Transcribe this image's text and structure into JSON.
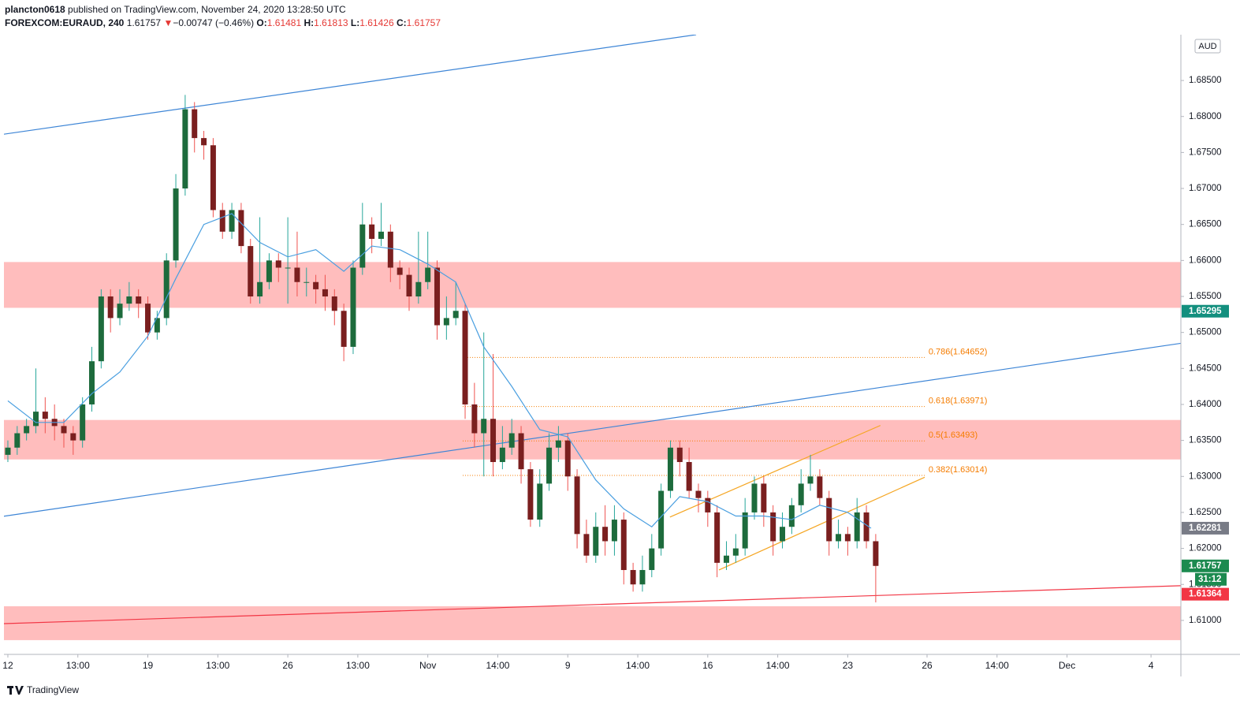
{
  "header": {
    "author": "plancton0618",
    "published": "published on TradingView.com, November 24, 2020 13:28:50 UTC",
    "symbol": "FOREXCOM:EURAUD, 240",
    "last": 1.61757,
    "direction": "▼",
    "change": "−0.00747 (−0.46%)",
    "open_label": "O:",
    "open": 1.61481,
    "high_label": "H:",
    "high": 1.61813,
    "low_label": "L:",
    "low": 1.61426,
    "close_label": "C:",
    "close": 1.61757
  },
  "chart_data": {
    "type": "candlestick",
    "xlim": [
      -0.84,
      251.4
    ],
    "ylim": [
      1.60528,
      1.69136
    ],
    "xticks": [
      {
        "value": 0,
        "label": "12"
      },
      {
        "value": 15,
        "label": "13:00"
      },
      {
        "value": 30,
        "label": "19"
      },
      {
        "value": 45,
        "label": "13:00"
      },
      {
        "value": 60,
        "label": "26"
      },
      {
        "value": 75,
        "label": "13:00"
      },
      {
        "value": 90,
        "label": "Nov"
      },
      {
        "value": 105,
        "label": "14:00"
      },
      {
        "value": 120,
        "label": "9"
      },
      {
        "value": 135,
        "label": "14:00"
      },
      {
        "value": 150,
        "label": "16"
      },
      {
        "value": 165,
        "label": "14:00"
      },
      {
        "value": 180,
        "label": "23"
      },
      {
        "value": 197,
        "label": "26"
      },
      {
        "value": 212,
        "label": "14:00"
      },
      {
        "value": 227,
        "label": "Dec"
      },
      {
        "value": 245,
        "label": "4"
      }
    ],
    "yticks": [
      {
        "value": 1.61,
        "label": "1.61000"
      },
      {
        "value": 1.615,
        "label": "1.61500"
      },
      {
        "value": 1.62,
        "label": "1.62000"
      },
      {
        "value": 1.625,
        "label": "1.62500"
      },
      {
        "value": 1.63,
        "label": "1.63000"
      },
      {
        "value": 1.635,
        "label": "1.63500"
      },
      {
        "value": 1.64,
        "label": "1.64000"
      },
      {
        "value": 1.645,
        "label": "1.64500"
      },
      {
        "value": 1.65,
        "label": "1.65000"
      },
      {
        "value": 1.655,
        "label": "1.65500"
      },
      {
        "value": 1.66,
        "label": "1.66000"
      },
      {
        "value": 1.665,
        "label": "1.66500"
      },
      {
        "value": 1.67,
        "label": "1.67000"
      },
      {
        "value": 1.675,
        "label": "1.67500"
      },
      {
        "value": 1.68,
        "label": "1.68000"
      },
      {
        "value": 1.685,
        "label": "1.68500"
      }
    ],
    "grid": false,
    "up_color": "#1d6b3c",
    "down_color": "#7a1f1f",
    "up_wick": "#26a69a",
    "down_wick": "#ef5350",
    "x": [
      0,
      2,
      4,
      6,
      8,
      10,
      12,
      14,
      16,
      18,
      20,
      22,
      24,
      26,
      28,
      30,
      32,
      34,
      36,
      38,
      40,
      42,
      44,
      46,
      48,
      50,
      52,
      54,
      56,
      58,
      60,
      62,
      64,
      66,
      68,
      70,
      72,
      74,
      76,
      78,
      80,
      82,
      84,
      86,
      88,
      90,
      92,
      94,
      96,
      98,
      100,
      102,
      104,
      106,
      108,
      110,
      112,
      114,
      116,
      118,
      120,
      122,
      124,
      126,
      128,
      130,
      132,
      134,
      136,
      138,
      140,
      142,
      144,
      146,
      148,
      150,
      152,
      154,
      156,
      158,
      160,
      162,
      164,
      166,
      168,
      170,
      172,
      174,
      176,
      178,
      180,
      182,
      184,
      186
    ],
    "candles": [
      [
        1.633,
        1.635,
        1.632,
        1.634
      ],
      [
        1.634,
        1.637,
        1.633,
        1.636
      ],
      [
        1.636,
        1.638,
        1.635,
        1.637
      ],
      [
        1.637,
        1.645,
        1.636,
        1.639
      ],
      [
        1.639,
        1.641,
        1.636,
        1.638
      ],
      [
        1.638,
        1.64,
        1.635,
        1.637
      ],
      [
        1.637,
        1.638,
        1.634,
        1.636
      ],
      [
        1.636,
        1.637,
        1.633,
        1.635
      ],
      [
        1.635,
        1.641,
        1.634,
        1.64
      ],
      [
        1.64,
        1.648,
        1.639,
        1.646
      ],
      [
        1.646,
        1.656,
        1.645,
        1.655
      ],
      [
        1.655,
        1.656,
        1.65,
        1.652
      ],
      [
        1.652,
        1.656,
        1.651,
        1.654
      ],
      [
        1.654,
        1.657,
        1.653,
        1.655
      ],
      [
        1.655,
        1.656,
        1.652,
        1.654
      ],
      [
        1.654,
        1.655,
        1.649,
        1.65
      ],
      [
        1.65,
        1.653,
        1.649,
        1.652
      ],
      [
        1.652,
        1.661,
        1.651,
        1.66
      ],
      [
        1.66,
        1.672,
        1.659,
        1.67
      ],
      [
        1.67,
        1.683,
        1.669,
        1.681
      ],
      [
        1.681,
        1.682,
        1.675,
        1.677
      ],
      [
        1.677,
        1.678,
        1.674,
        1.676
      ],
      [
        1.676,
        1.677,
        1.666,
        1.667
      ],
      [
        1.667,
        1.668,
        1.663,
        1.664
      ],
      [
        1.664,
        1.668,
        1.663,
        1.667
      ],
      [
        1.667,
        1.668,
        1.661,
        1.662
      ],
      [
        1.662,
        1.663,
        1.654,
        1.655
      ],
      [
        1.655,
        1.666,
        1.654,
        1.657
      ],
      [
        1.657,
        1.661,
        1.656,
        1.66
      ],
      [
        1.66,
        1.661,
        1.657,
        1.659
      ],
      [
        1.659,
        1.666,
        1.654,
        1.659
      ],
      [
        1.659,
        1.664,
        1.655,
        1.657
      ],
      [
        1.657,
        1.659,
        1.655,
        1.657
      ],
      [
        1.657,
        1.658,
        1.654,
        1.656
      ],
      [
        1.656,
        1.658,
        1.653,
        1.655
      ],
      [
        1.655,
        1.656,
        1.651,
        1.653
      ],
      [
        1.653,
        1.654,
        1.646,
        1.648
      ],
      [
        1.648,
        1.66,
        1.647,
        1.659
      ],
      [
        1.659,
        1.668,
        1.658,
        1.665
      ],
      [
        1.665,
        1.666,
        1.661,
        1.663
      ],
      [
        1.663,
        1.668,
        1.662,
        1.664
      ],
      [
        1.664,
        1.665,
        1.657,
        1.659
      ],
      [
        1.659,
        1.66,
        1.656,
        1.658
      ],
      [
        1.658,
        1.659,
        1.653,
        1.655
      ],
      [
        1.655,
        1.664,
        1.654,
        1.657
      ],
      [
        1.657,
        1.664,
        1.656,
        1.659
      ],
      [
        1.659,
        1.66,
        1.649,
        1.651
      ],
      [
        1.651,
        1.655,
        1.649,
        1.652
      ],
      [
        1.652,
        1.657,
        1.651,
        1.653
      ],
      [
        1.653,
        1.654,
        1.638,
        1.64
      ],
      [
        1.64,
        1.643,
        1.634,
        1.636
      ],
      [
        1.636,
        1.65,
        1.63,
        1.638
      ],
      [
        1.638,
        1.647,
        1.63,
        1.632
      ],
      [
        1.632,
        1.637,
        1.631,
        1.634
      ],
      [
        1.634,
        1.638,
        1.633,
        1.636
      ],
      [
        1.636,
        1.637,
        1.629,
        1.631
      ],
      [
        1.631,
        1.632,
        1.623,
        1.624
      ],
      [
        1.624,
        1.631,
        1.623,
        1.629
      ],
      [
        1.629,
        1.636,
        1.628,
        1.634
      ],
      [
        1.634,
        1.637,
        1.632,
        1.635
      ],
      [
        1.635,
        1.636,
        1.628,
        1.63
      ],
      [
        1.63,
        1.631,
        1.62,
        1.622
      ],
      [
        1.622,
        1.624,
        1.618,
        1.619
      ],
      [
        1.619,
        1.625,
        1.618,
        1.623
      ],
      [
        1.623,
        1.626,
        1.619,
        1.621
      ],
      [
        1.621,
        1.626,
        1.619,
        1.624
      ],
      [
        1.624,
        1.625,
        1.615,
        1.617
      ],
      [
        1.617,
        1.618,
        1.614,
        1.615
      ],
      [
        1.615,
        1.619,
        1.614,
        1.617
      ],
      [
        1.617,
        1.622,
        1.616,
        1.62
      ],
      [
        1.62,
        1.629,
        1.619,
        1.628
      ],
      [
        1.628,
        1.635,
        1.627,
        1.634
      ],
      [
        1.634,
        1.635,
        1.63,
        1.632
      ],
      [
        1.632,
        1.634,
        1.627,
        1.628
      ],
      [
        1.628,
        1.629,
        1.625,
        1.627
      ],
      [
        1.627,
        1.628,
        1.623,
        1.625
      ],
      [
        1.625,
        1.626,
        1.616,
        1.618
      ],
      [
        1.618,
        1.621,
        1.617,
        1.619
      ],
      [
        1.619,
        1.622,
        1.618,
        1.62
      ],
      [
        1.62,
        1.627,
        1.619,
        1.625
      ],
      [
        1.625,
        1.63,
        1.624,
        1.629
      ],
      [
        1.629,
        1.63,
        1.623,
        1.625
      ],
      [
        1.625,
        1.626,
        1.619,
        1.621
      ],
      [
        1.621,
        1.625,
        1.62,
        1.623
      ],
      [
        1.623,
        1.627,
        1.622,
        1.626
      ],
      [
        1.626,
        1.631,
        1.625,
        1.629
      ],
      [
        1.629,
        1.633,
        1.628,
        1.63
      ],
      [
        1.63,
        1.631,
        1.626,
        1.627
      ],
      [
        1.627,
        1.628,
        1.619,
        1.621
      ],
      [
        1.621,
        1.624,
        1.62,
        1.622
      ],
      [
        1.622,
        1.623,
        1.619,
        1.621
      ],
      [
        1.621,
        1.627,
        1.62,
        1.625
      ],
      [
        1.625,
        1.626,
        1.62,
        1.621
      ],
      [
        1.621,
        1.622,
        1.6125,
        1.61757
      ]
    ],
    "moving_average": {
      "color": "#4a9fe0",
      "x": [
        0,
        6,
        12,
        18,
        24,
        30,
        36,
        42,
        48,
        54,
        60,
        66,
        72,
        78,
        84,
        90,
        96,
        102,
        108,
        114,
        120,
        126,
        132,
        138,
        144,
        150,
        156,
        162,
        168,
        174,
        180,
        185
      ],
      "values": [
        1.6405,
        1.6375,
        1.6375,
        1.6415,
        1.6445,
        1.6495,
        1.6575,
        1.665,
        1.6665,
        1.6625,
        1.6605,
        1.6615,
        1.6585,
        1.662,
        1.6615,
        1.6595,
        1.657,
        1.648,
        1.6425,
        1.6365,
        1.6355,
        1.6295,
        1.6255,
        1.623,
        1.6272,
        1.6265,
        1.6245,
        1.6245,
        1.624,
        1.626,
        1.625,
        1.6228
      ]
    },
    "zones": {
      "color": "#ffbdbd",
      "ranges": [
        [
          1.65342,
          1.65978
        ],
        [
          1.63236,
          1.63784
        ],
        [
          1.60726,
          1.61197
        ]
      ]
    },
    "trend_lines": [
      {
        "color": "#3d85d6",
        "x": [
          -0.84,
          147.5
        ],
        "values": [
          1.67754,
          1.69136
        ]
      },
      {
        "color": "#3d85d6",
        "x": [
          -0.84,
          251.4
        ],
        "values": [
          1.62447,
          1.64849
        ]
      },
      {
        "color": "#f23645",
        "x": [
          -0.84,
          251.4
        ],
        "values": [
          1.60955,
          1.61482
        ]
      },
      {
        "color": "#f5a623",
        "x": [
          141.9,
          187
        ],
        "values": [
          1.62436,
          1.63708
        ]
      },
      {
        "color": "#f5a623",
        "x": [
          152.4,
          196.5
        ],
        "values": [
          1.61701,
          1.62989
        ]
      }
    ],
    "fib_color": "#f57c00",
    "fib_x": [
      97.5,
      196.8
    ],
    "fib_levels": [
      {
        "value": 1.64652,
        "label": "0.786(1.64652)"
      },
      {
        "value": 1.63971,
        "label": "0.618(1.63971)"
      },
      {
        "value": 1.63493,
        "label": "0.5(1.63493)"
      },
      {
        "value": 1.63014,
        "label": "0.382(1.63014)"
      }
    ],
    "currency": "AUD",
    "price_tags": [
      {
        "value": 1.65295,
        "color": "#138f7e"
      },
      {
        "value": 1.62281,
        "color": "#787b86"
      },
      {
        "value": 1.61757,
        "color": "#1b8a4f"
      },
      {
        "value": 1.61364,
        "color": "#f23645"
      }
    ],
    "countdown": "31:12"
  },
  "footer": {
    "brand": "TradingView"
  }
}
